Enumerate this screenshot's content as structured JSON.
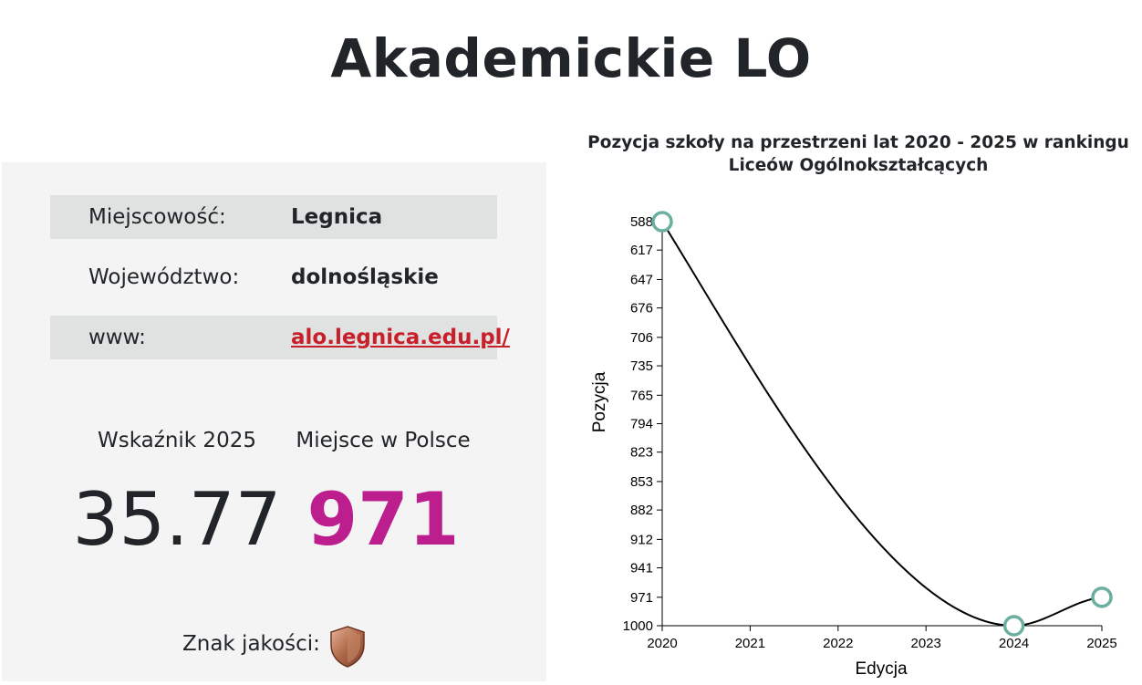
{
  "school": {
    "name": "Akademickie LO"
  },
  "info": {
    "rows": [
      {
        "label": "Miejscowość:",
        "value": "Legnica"
      },
      {
        "label": "Województwo:",
        "value": "dolnośląskie"
      },
      {
        "label": "www:",
        "value": "alo.legnica.edu.pl/"
      }
    ]
  },
  "stats": {
    "index_label": "Wskaźnik 2025",
    "index_value": "35.77",
    "place_label": "Miejsce w Polsce",
    "place_value": "971"
  },
  "quality": {
    "label": "Znak jakości:",
    "badge": "bronze-shield-icon"
  },
  "colors": {
    "accent": "#bd1e8e",
    "link": "#c8202b",
    "point": "#6aaf9f",
    "panel": "#f4f4f4",
    "row_shade": "#e0e1e1"
  },
  "chart_data": {
    "type": "line",
    "title_line1": "Pozycja szkoły na przestrzeni lat 2020 - 2025 w rankingu",
    "title_line2": "Liceów Ogólnokształcących",
    "xlabel": "Edycja",
    "ylabel": "Pozycja",
    "x_ticks": [
      "2020",
      "2021",
      "2022",
      "2023",
      "2024",
      "2025"
    ],
    "y_ticks": [
      "588",
      "617",
      "647",
      "676",
      "706",
      "735",
      "765",
      "794",
      "823",
      "853",
      "882",
      "912",
      "941",
      "971",
      "1000"
    ],
    "ylim": [
      588,
      1000
    ],
    "y_inverted": true,
    "series": [
      {
        "values": [
          {
            "x": 2020,
            "y": 588
          },
          {
            "x": 2024,
            "y": 1000
          },
          {
            "x": 2025,
            "y": 971
          }
        ]
      }
    ]
  }
}
